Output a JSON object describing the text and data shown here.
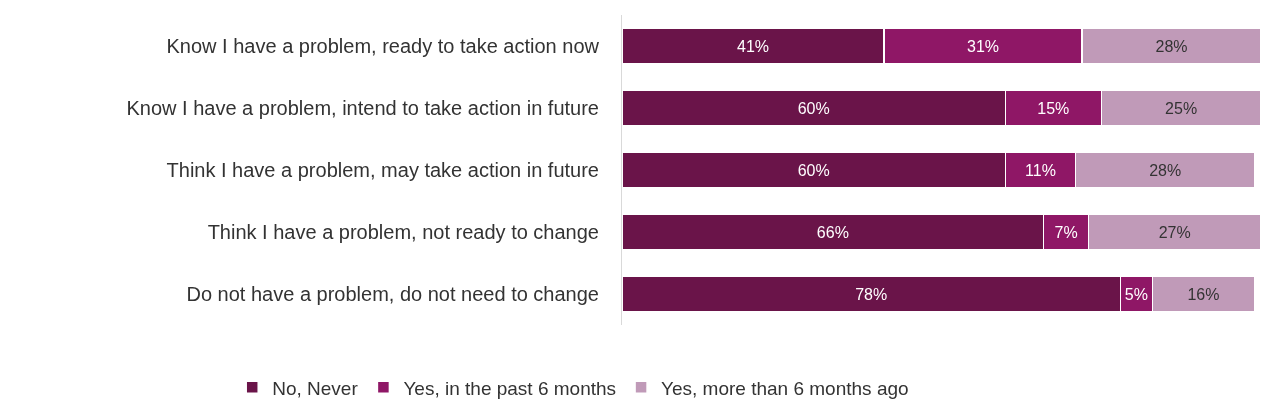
{
  "chart_data": {
    "type": "bar",
    "orientation": "horizontal",
    "stacked": true,
    "data_labels": false,
    "legend": "bottom",
    "tick_labels": "y",
    "categories": [
      "Know I have a problem, ready to take action now",
      "Know I have a problem, intend to take action in future",
      "Think I have a problem, may take action in future",
      "Think I have a problem, not ready to change",
      "Do not have a problem, do not need to change"
    ],
    "series": [
      {
        "name": "No, Never",
        "color": "#6a1449",
        "values": [
          41,
          60,
          60,
          66,
          78
        ],
        "value_labels": [
          "41%",
          "60%",
          "60%",
          "66%",
          "78%"
        ]
      },
      {
        "name": "Yes, in the past 6 months",
        "color": "#8f1766",
        "values": [
          31,
          15,
          11,
          7,
          5
        ],
        "value_labels": [
          "31%",
          "15%",
          "11%",
          "7%",
          "5%"
        ]
      },
      {
        "name": "Yes, more than 6 months ago",
        "color": "#c09ab8",
        "values": [
          28,
          25,
          28,
          27,
          16
        ],
        "value_labels": [
          "28%",
          "25%",
          "28%",
          "27%",
          "16%"
        ]
      }
    ]
  }
}
